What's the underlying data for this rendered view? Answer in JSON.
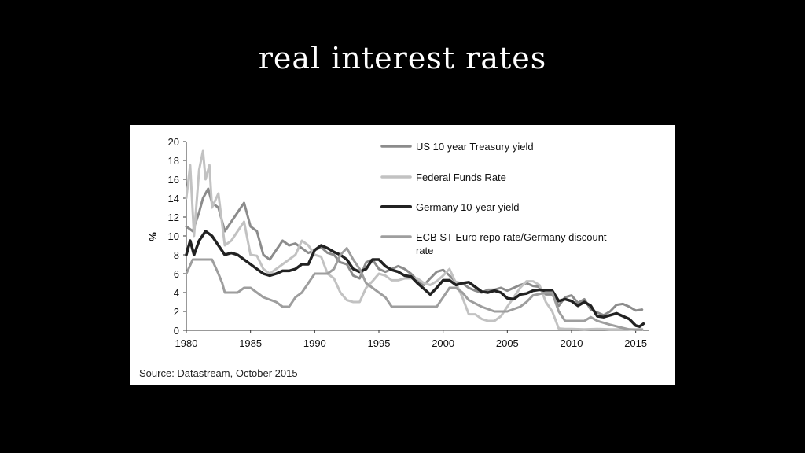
{
  "slide": {
    "title": "real interest rates"
  },
  "source_note": "Source: Datastream, October 2015",
  "chart_data": {
    "type": "line",
    "title": "",
    "xlabel": "",
    "ylabel": "%",
    "xlim": [
      1980,
      2016
    ],
    "ylim": [
      0,
      20
    ],
    "x_ticks": [
      1980,
      1985,
      1990,
      1995,
      2000,
      2005,
      2010,
      2015
    ],
    "y_ticks": [
      0,
      2,
      4,
      6,
      8,
      10,
      12,
      14,
      16,
      18,
      20
    ],
    "grid": false,
    "legend_position": "top-right",
    "series": [
      {
        "name": "US 10 year Treasury yield",
        "color": "#8c8c8c",
        "width": 3,
        "x": [
          1980,
          1980.5,
          1981,
          1981.3,
          1981.7,
          1982,
          1982.5,
          1983,
          1983.5,
          1984,
          1984.5,
          1985,
          1985.5,
          1986,
          1986.5,
          1987,
          1987.5,
          1988,
          1988.5,
          1989,
          1989.5,
          1990,
          1990.5,
          1991,
          1991.5,
          1992,
          1992.5,
          1993,
          1993.5,
          1994,
          1994.5,
          1995,
          1995.5,
          1996,
          1996.5,
          1997,
          1997.5,
          1998,
          1998.5,
          1999,
          1999.5,
          2000,
          2000.5,
          2001,
          2001.5,
          2002,
          2002.5,
          2003,
          2003.5,
          2004,
          2004.5,
          2005,
          2005.5,
          2006,
          2006.5,
          2007,
          2007.5,
          2008,
          2008.5,
          2009,
          2009.5,
          2010,
          2010.5,
          2011,
          2011.5,
          2012,
          2012.5,
          2013,
          2013.5,
          2014,
          2014.5,
          2015,
          2015.5
        ],
        "values": [
          11,
          10.5,
          12.5,
          14,
          15,
          13.5,
          13,
          10.5,
          11.5,
          12.5,
          13.5,
          11,
          10.5,
          8,
          7.5,
          8.5,
          9.5,
          9,
          9.2,
          8.7,
          8.2,
          8.5,
          8.8,
          8.2,
          8,
          7.2,
          7,
          5.8,
          5.5,
          7.2,
          7.5,
          6.5,
          6.2,
          6.5,
          6.8,
          6.5,
          6,
          5.3,
          4.8,
          5.5,
          6.2,
          6.4,
          5.8,
          5.1,
          5,
          4.5,
          4.2,
          4,
          4.3,
          4.3,
          4.5,
          4.2,
          4.5,
          4.8,
          5,
          4.7,
          4.6,
          3.8,
          3.8,
          2.6,
          3.5,
          3.7,
          2.9,
          3.3,
          2.2,
          1.9,
          1.6,
          2,
          2.7,
          2.8,
          2.5,
          2.1,
          2.2
        ]
      },
      {
        "name": "Federal Funds Rate",
        "color": "#c2c2c2",
        "width": 3,
        "x": [
          1980,
          1980.3,
          1980.6,
          1981,
          1981.3,
          1981.5,
          1981.8,
          1982,
          1982.5,
          1983,
          1983.5,
          1984,
          1984.5,
          1985,
          1985.5,
          1986,
          1986.5,
          1987,
          1987.5,
          1988,
          1988.5,
          1989,
          1989.5,
          1990,
          1990.5,
          1991,
          1991.5,
          1992,
          1992.5,
          1993,
          1993.5,
          1994,
          1994.5,
          1995,
          1995.5,
          1996,
          1996.5,
          1997,
          1997.5,
          1998,
          1998.5,
          1999,
          1999.5,
          2000,
          2000.5,
          2001,
          2001.5,
          2002,
          2002.5,
          2003,
          2003.5,
          2004,
          2004.5,
          2005,
          2005.5,
          2006,
          2006.5,
          2007,
          2007.5,
          2008,
          2008.5,
          2009,
          2009.5,
          2010,
          2011,
          2012,
          2013,
          2014,
          2015,
          2015.5
        ],
        "values": [
          14,
          17.5,
          10,
          17,
          19,
          16,
          17.5,
          13,
          14.5,
          9,
          9.5,
          10.5,
          11.5,
          8,
          7.9,
          6.5,
          6,
          6.5,
          7,
          7.5,
          8,
          9.5,
          9,
          8,
          7.8,
          6,
          5.5,
          4,
          3.2,
          3,
          3,
          4.5,
          5.2,
          6,
          5.8,
          5.3,
          5.3,
          5.5,
          5.5,
          5.5,
          5,
          4.8,
          5.2,
          5.8,
          6.5,
          5,
          3.5,
          1.7,
          1.7,
          1.2,
          1,
          1,
          1.5,
          2.5,
          3.5,
          4.5,
          5.2,
          5.2,
          4.8,
          3,
          2,
          0.2,
          0.15,
          0.15,
          0.1,
          0.15,
          0.1,
          0.1,
          0.1,
          0.15
        ]
      },
      {
        "name": "Germany 10-year yield",
        "color": "#222222",
        "width": 3.5,
        "x": [
          1980,
          1980.3,
          1980.6,
          1981,
          1981.5,
          1982,
          1982.5,
          1983,
          1983.5,
          1984,
          1984.5,
          1985,
          1985.5,
          1986,
          1986.5,
          1987,
          1987.5,
          1988,
          1988.5,
          1989,
          1989.5,
          1990,
          1990.5,
          1991,
          1991.5,
          1992,
          1992.5,
          1993,
          1993.5,
          1994,
          1994.5,
          1995,
          1995.5,
          1996,
          1996.5,
          1997,
          1997.5,
          1998,
          1998.5,
          1999,
          1999.5,
          2000,
          2000.5,
          2001,
          2001.5,
          2002,
          2002.5,
          2003,
          2003.5,
          2004,
          2004.5,
          2005,
          2005.5,
          2006,
          2006.5,
          2007,
          2007.5,
          2008,
          2008.5,
          2009,
          2009.5,
          2010,
          2010.5,
          2011,
          2011.5,
          2012,
          2012.5,
          2013,
          2013.5,
          2014,
          2014.5,
          2015,
          2015.3,
          2015.6
        ],
        "values": [
          8,
          9.5,
          8,
          9.5,
          10.5,
          10,
          9,
          8,
          8.2,
          8,
          7.5,
          7,
          6.5,
          6,
          5.8,
          6,
          6.3,
          6.3,
          6.5,
          7,
          7,
          8.5,
          9,
          8.7,
          8.3,
          8,
          7.5,
          6.5,
          6.2,
          6.5,
          7.5,
          7.5,
          6.8,
          6.4,
          6.2,
          5.8,
          5.7,
          5,
          4.4,
          3.8,
          4.5,
          5.3,
          5.3,
          4.8,
          5,
          5.1,
          4.6,
          4.1,
          4,
          4.2,
          4,
          3.4,
          3.3,
          3.8,
          3.9,
          4.2,
          4.3,
          4.2,
          4.2,
          3.1,
          3.3,
          3.1,
          2.6,
          3,
          2.6,
          1.5,
          1.4,
          1.6,
          1.8,
          1.5,
          1.2,
          0.5,
          0.4,
          0.7
        ]
      },
      {
        "name": "ECB ST Euro repo rate/Germany discount rate",
        "color": "#9e9e9e",
        "width": 3,
        "x": [
          1980,
          1980.5,
          1981,
          1982,
          1982.5,
          1982.8,
          1983,
          1984,
          1984.5,
          1985,
          1985.5,
          1986,
          1987,
          1987.5,
          1988,
          1988.5,
          1989,
          1989.5,
          1990,
          1991,
          1991.5,
          1992,
          1992.5,
          1993,
          1993.5,
          1994,
          1995,
          1995.5,
          1996,
          1997,
          1998,
          1999,
          1999.5,
          2000,
          2000.5,
          2001,
          2001.5,
          2002,
          2003,
          2004,
          2005,
          2006,
          2006.5,
          2007,
          2008,
          2008.5,
          2009,
          2009.5,
          2010,
          2011,
          2011.5,
          2012,
          2013,
          2014,
          2014.5,
          2015,
          2015.5
        ],
        "values": [
          6,
          7.5,
          7.5,
          7.5,
          6,
          5,
          4,
          4,
          4.5,
          4.5,
          4,
          3.5,
          3,
          2.5,
          2.5,
          3.5,
          4,
          5,
          6,
          6,
          6.5,
          8,
          8.7,
          7.5,
          6.5,
          5,
          4,
          3.5,
          2.5,
          2.5,
          2.5,
          2.5,
          2.5,
          3.5,
          4.5,
          4.5,
          4,
          3.2,
          2.5,
          2,
          2,
          2.5,
          3,
          3.7,
          4,
          4,
          2,
          1,
          1,
          1,
          1.4,
          1,
          0.6,
          0.25,
          0.1,
          0.05,
          0.05
        ]
      }
    ]
  }
}
